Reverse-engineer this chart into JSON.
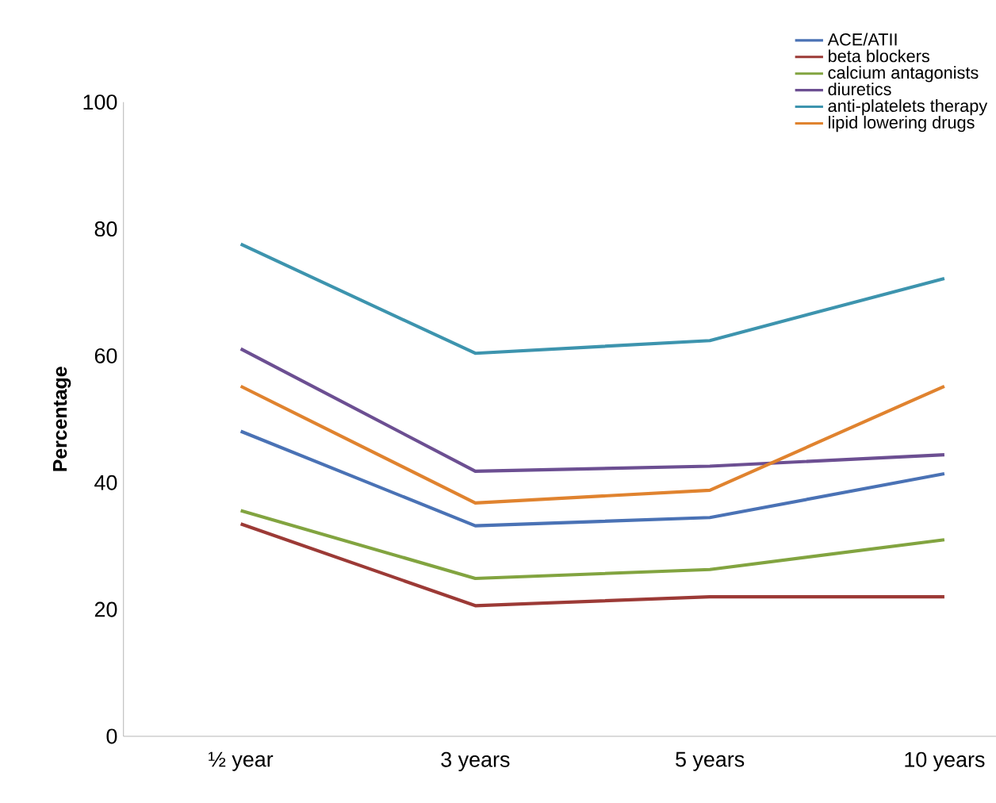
{
  "chart_data": {
    "type": "line",
    "ylabel": "Percentage",
    "categories": [
      "½ year",
      "3 years",
      "5 years",
      "10 years"
    ],
    "ylim": [
      0,
      100
    ],
    "yticks": [
      0,
      20,
      40,
      60,
      80,
      100
    ],
    "grid": false,
    "legend": "top right",
    "marker": "none",
    "series": [
      {
        "name": "ACE/ATII",
        "color": "#4a72b5",
        "values": [
          48.1,
          33.2,
          34.5,
          41.4
        ]
      },
      {
        "name": "beta blockers",
        "color": "#9c3a36",
        "values": [
          33.5,
          20.6,
          22.0,
          22.0
        ]
      },
      {
        "name": "calcium antagonists",
        "color": "#82a440",
        "values": [
          35.6,
          24.9,
          26.3,
          31.0
        ]
      },
      {
        "name": "diuretics",
        "color": "#6c4f92",
        "values": [
          61.1,
          41.8,
          42.6,
          44.4
        ]
      },
      {
        "name": "anti-platelets therapy",
        "color": "#3d94ae",
        "values": [
          77.6,
          60.4,
          62.4,
          72.2
        ]
      },
      {
        "name": "lipid lowering drugs",
        "color": "#e0832f",
        "values": [
          55.2,
          36.8,
          38.8,
          55.2
        ]
      }
    ]
  }
}
